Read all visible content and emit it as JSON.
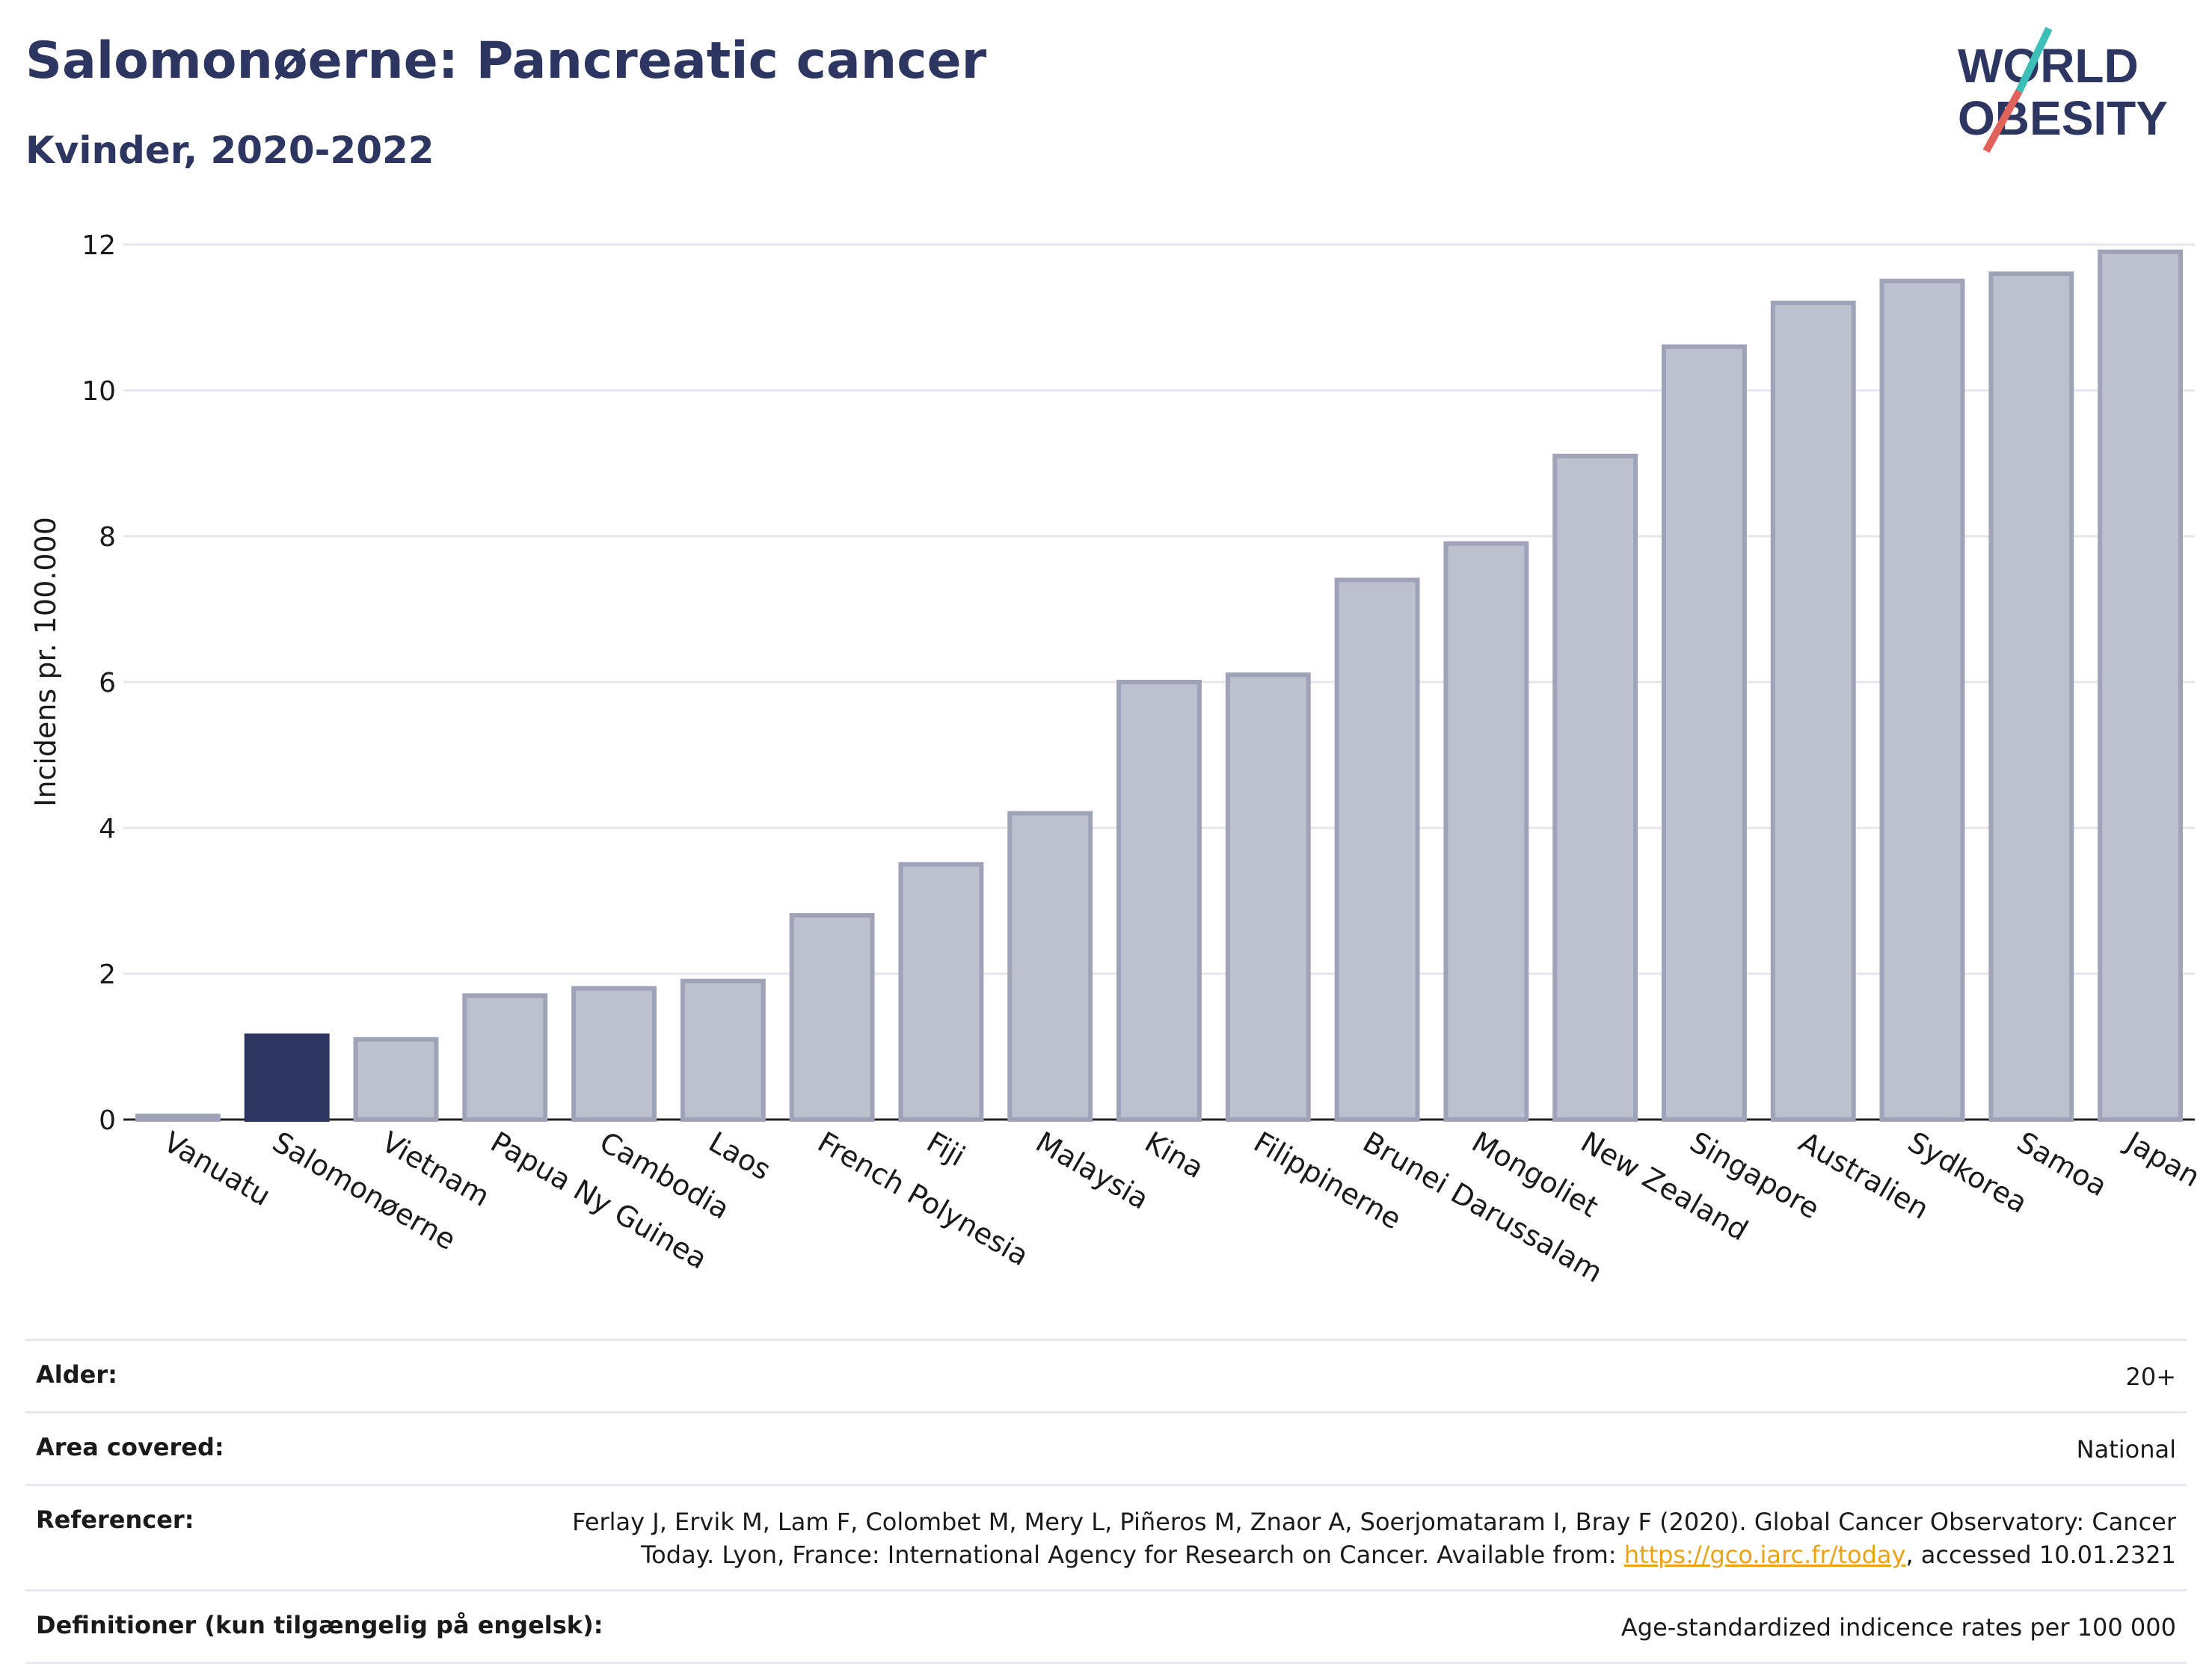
{
  "header": {
    "title": "Salomonøerne: Pancreatic cancer",
    "subtitle": "Kvinder, 2020-2022"
  },
  "logo": {
    "line1": "WORLD",
    "line2": "OBESITY",
    "text_color": "#2d3561",
    "accent_teal": "#3dbfb8",
    "accent_red": "#e0625a"
  },
  "colors": {
    "highlight": "#2d3561",
    "bar": "#bcc0cf",
    "bar_stroke": "#9ea3b8"
  },
  "chart_data": {
    "type": "bar",
    "title": "Salomonøerne: Pancreatic cancer",
    "subtitle": "Kvinder, 2020-2022",
    "ylabel": "Incidens pr. 100.000",
    "xlabel": "",
    "ylim": [
      0,
      12
    ],
    "yticks": [
      0,
      2,
      4,
      6,
      8,
      10,
      12
    ],
    "grid": true,
    "highlight_category": "Salomonøerne",
    "categories": [
      "Vanuatu",
      "Salomonøerne",
      "Vietnam",
      "Papua Ny Guinea",
      "Cambodia",
      "Laos",
      "French Polynesia",
      "Fiji",
      "Malaysia",
      "Kina",
      "Filippinerne",
      "Brunei Darussalam",
      "Mongoliet",
      "New Zealand",
      "Singapore",
      "Australien",
      "Sydkorea",
      "Samoa",
      "Japan"
    ],
    "values": [
      0.05,
      1.15,
      1.1,
      1.7,
      1.8,
      1.9,
      2.8,
      3.5,
      4.2,
      6.0,
      6.1,
      7.4,
      7.9,
      9.1,
      10.6,
      11.2,
      11.5,
      11.6,
      11.9
    ]
  },
  "info": {
    "age_label": "Alder:",
    "age_value": "20+",
    "area_label": "Area covered:",
    "area_value": "National",
    "ref_label": "Referencer:",
    "ref_text_1": "Ferlay J, Ervik M, Lam F, Colombet M, Mery L, Piñeros M, Znaor A, Soerjomataram I, Bray F (2020). Global Cancer Observatory: Cancer",
    "ref_text_2": "Today. Lyon, France: International Agency for Research on Cancer. Available from: ",
    "ref_link": "https://gco.iarc.fr/today",
    "ref_text_3": ", accessed 10.01.2321",
    "def_label": "Definitioner (kun tilgængelig på engelsk):",
    "def_value": "Age-standardized indicence rates per 100 000"
  }
}
